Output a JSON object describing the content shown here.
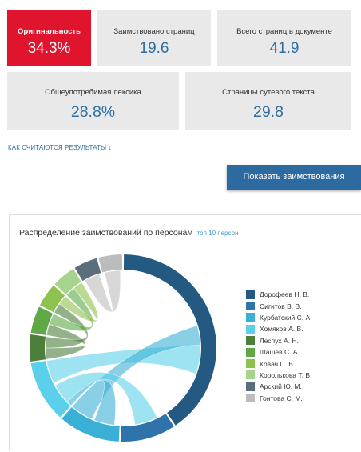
{
  "cards": {
    "originality": {
      "label": "Оригинальность",
      "value": "34.3%",
      "color": "#e0152d"
    },
    "borrowed_pages": {
      "label": "Заимствовано страниц",
      "value": "19.6"
    },
    "total_pages": {
      "label": "Всего страниц в документе",
      "value": "41.9"
    },
    "common_vocab": {
      "label": "Общеупотребимая лексика",
      "value": "28.8%"
    },
    "essential_text": {
      "label": "Страницы сутевого текста",
      "value": "29.8"
    }
  },
  "how_link": "КАК СЧИТАЮТСЯ РЕЗУЛЬТАТЫ ↓",
  "show_button": "Показать заимствования",
  "chart": {
    "title": "Распределение заимствований по персонам",
    "subtitle": "топ 10 персон"
  },
  "chart_data": {
    "type": "chord",
    "title": "Распределение заимствований по персонам",
    "subtitle": "топ 10 персон",
    "legend_position": "right",
    "series": [
      {
        "name": "Дорофеев Н. В.",
        "value": 37,
        "color": "#245a82"
      },
      {
        "name": "Сигитов В. В.",
        "value": 9,
        "color": "#2f73aa"
      },
      {
        "name": "Курбатский С. А.",
        "value": 10,
        "color": "#3ab0d6"
      },
      {
        "name": "Хомяков А. В.",
        "value": 10,
        "color": "#5bd0ea"
      },
      {
        "name": "Леспух А. Н.",
        "value": 4.5,
        "color": "#4c7e3c"
      },
      {
        "name": "Шашев С. А.",
        "value": 4.5,
        "color": "#5ea846"
      },
      {
        "name": "Ковач С. Б.",
        "value": 4,
        "color": "#8cc24d"
      },
      {
        "name": "Королькова Т. В.",
        "value": 4,
        "color": "#a6d48c"
      },
      {
        "name": "Арский Ю. М.",
        "value": 4,
        "color": "#5b6e7b"
      },
      {
        "name": "Гонтова С. М.",
        "value": 4,
        "color": "#bcbcbc"
      }
    ]
  }
}
